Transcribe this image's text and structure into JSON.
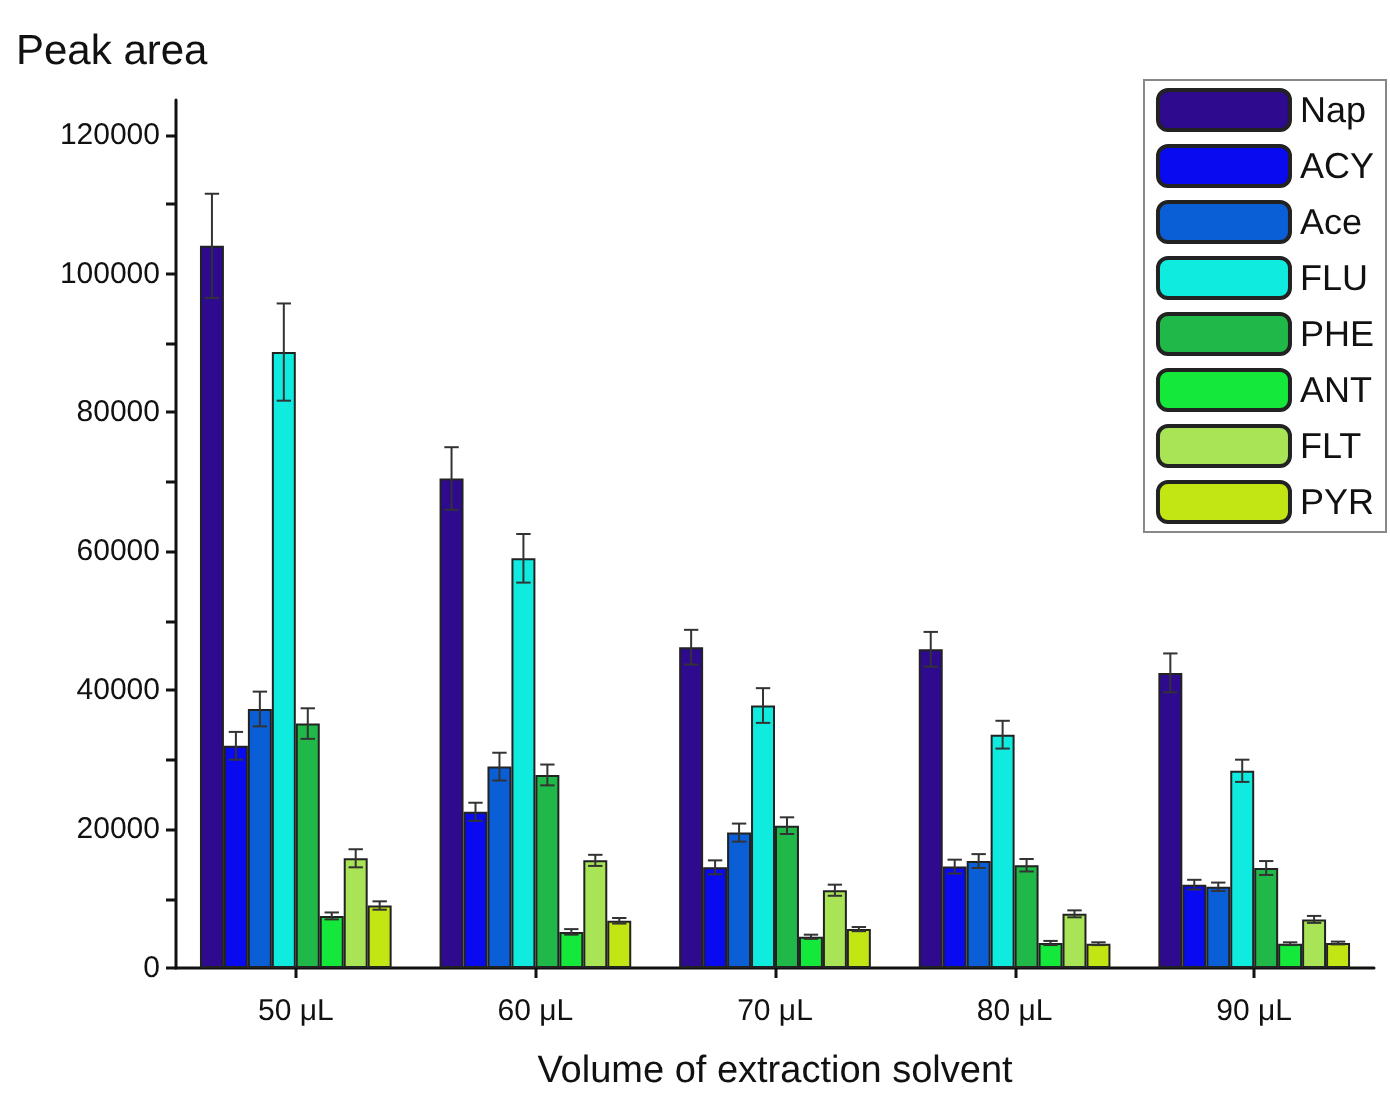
{
  "chart_data": {
    "type": "bar",
    "ylabel": "Peak area",
    "xlabel": "Volume of extraction solvent",
    "categories": [
      "50 μL",
      "60 μL",
      "70 μL",
      "80 μL",
      "90 μL"
    ],
    "series": [
      {
        "name": "Nap",
        "color": "#2e0a8f",
        "values": [
          104000,
          70500,
          46200,
          45900,
          42500
        ],
        "errors": [
          7500,
          4500,
          2500,
          2500,
          2800
        ]
      },
      {
        "name": "ACY",
        "color": "#0a0af0",
        "values": [
          32000,
          22500,
          14500,
          14600,
          12000
        ],
        "errors": [
          2000,
          1300,
          1000,
          1000,
          700
        ]
      },
      {
        "name": "Ace",
        "color": "#0a5ed6",
        "values": [
          37300,
          29000,
          19500,
          15400,
          11700
        ],
        "errors": [
          2500,
          2000,
          1300,
          1000,
          600
        ]
      },
      {
        "name": "FLU",
        "color": "#10ebe0",
        "values": [
          88700,
          59000,
          37800,
          33600,
          28400
        ],
        "errors": [
          7000,
          3500,
          2500,
          2000,
          1600
        ]
      },
      {
        "name": "PHE",
        "color": "#20b848",
        "values": [
          35200,
          27800,
          20500,
          14800,
          14400
        ],
        "errors": [
          2200,
          1500,
          1200,
          900,
          1000
        ]
      },
      {
        "name": "ANT",
        "color": "#14e83a",
        "values": [
          7500,
          5200,
          4500,
          3600,
          3500
        ],
        "errors": [
          500,
          400,
          300,
          300,
          200
        ]
      },
      {
        "name": "FLT",
        "color": "#a8e456",
        "values": [
          15800,
          15500,
          11200,
          7800,
          7000
        ],
        "errors": [
          1300,
          800,
          800,
          500,
          500
        ]
      },
      {
        "name": "PYR",
        "color": "#c2e614",
        "values": [
          9000,
          6800,
          5600,
          3500,
          3600
        ],
        "errors": [
          600,
          400,
          300,
          200,
          200
        ]
      }
    ],
    "ylim": [
      0,
      125000
    ],
    "yticks": [
      0,
      {
        "value": 10000,
        "label": null
      },
      20000,
      {
        "value": 30000,
        "label": null
      },
      40000,
      {
        "value": 50000,
        "label": null
      },
      60000,
      {
        "value": 70000,
        "label": null
      },
      80000,
      {
        "value": 90000,
        "label": null
      },
      100000,
      {
        "value": 110000,
        "label": null
      },
      120000
    ],
    "legend": "top right",
    "grid": false
  }
}
